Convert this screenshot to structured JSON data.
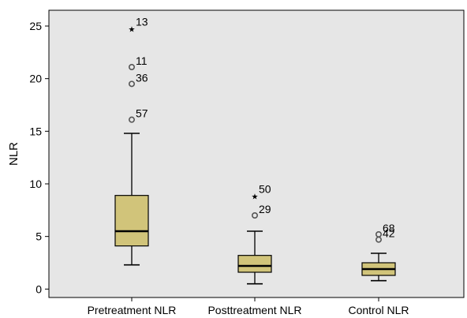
{
  "chart_data": {
    "type": "boxplot",
    "ylabel": "NLR",
    "ylim": [
      -0.8,
      26.5
    ],
    "yticks": [
      0,
      5,
      10,
      15,
      20,
      25
    ],
    "yticks_text": [
      "0",
      "5",
      "10",
      "15",
      "20",
      "25"
    ],
    "categories": [
      "Pretreatment NLR",
      "Posttreatment NLR",
      "Control NLR"
    ],
    "boxes": [
      {
        "category": "Pretreatment NLR",
        "whisker_low": 2.3,
        "q1": 4.1,
        "median": 5.5,
        "q3": 8.9,
        "whisker_high": 14.8,
        "outliers": [
          {
            "value": 24.8,
            "label": "13",
            "marker": "star"
          },
          {
            "value": 21.1,
            "label": "11",
            "marker": "circle"
          },
          {
            "value": 19.5,
            "label": "36",
            "marker": "circle"
          },
          {
            "value": 16.1,
            "label": "57",
            "marker": "circle"
          }
        ]
      },
      {
        "category": "Posttreatment NLR",
        "whisker_low": 0.5,
        "q1": 1.6,
        "median": 2.2,
        "q3": 3.2,
        "whisker_high": 5.5,
        "outliers": [
          {
            "value": 8.9,
            "label": "50",
            "marker": "star"
          },
          {
            "value": 7.0,
            "label": "29",
            "marker": "circle"
          }
        ]
      },
      {
        "category": "Control NLR",
        "whisker_low": 0.8,
        "q1": 1.3,
        "median": 1.9,
        "q3": 2.5,
        "whisker_high": 3.4,
        "outliers": [
          {
            "value": 5.2,
            "label": "68",
            "marker": "circle"
          },
          {
            "value": 4.7,
            "label": "42",
            "marker": "circle"
          }
        ]
      }
    ],
    "colors": {
      "plot_background": "#e6e6e6",
      "box_fill": "#d1c47a",
      "stroke": "#000000",
      "outlier_stroke": "#555555"
    },
    "grid": false,
    "legend": "none"
  }
}
